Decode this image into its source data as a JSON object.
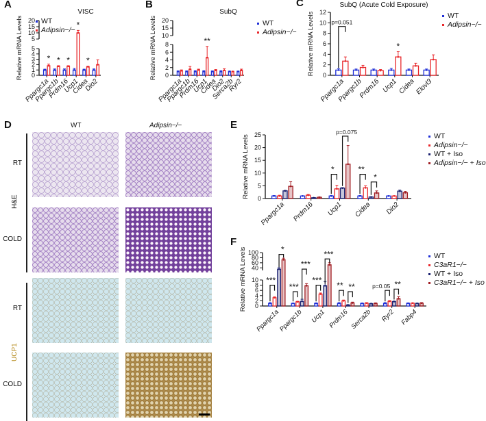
{
  "panel_labels": [
    "A",
    "B",
    "C",
    "D",
    "E",
    "F"
  ],
  "colors": {
    "wt": "#1f2fd6",
    "ko": "#e8262a",
    "wt_iso": "#1b2170",
    "ko_iso": "#a01c22"
  },
  "legends": {
    "adipsin2": [
      {
        "name": "WT",
        "italic": false
      },
      {
        "name": "Adipsin−/−",
        "italic": true
      }
    ],
    "adipsin4": [
      {
        "name": "WT",
        "italic": false
      },
      {
        "name": "Adipsin−/−",
        "italic": true
      },
      {
        "name": "WT + Iso",
        "italic": false
      },
      {
        "name": "Adipsin−/− + Iso",
        "italic": true
      }
    ],
    "c3ar4": [
      {
        "name": "WT",
        "italic": false
      },
      {
        "name": "C3aR1−/−",
        "italic": true
      },
      {
        "name": "WT + Iso",
        "italic": false
      },
      {
        "name": "C3aR1−/− + Iso",
        "italic": true
      }
    ]
  },
  "histology": {
    "columns": [
      "WT",
      "Adipsin−/−"
    ],
    "rows": [
      "RT",
      "COLD",
      "RT",
      "COLD"
    ],
    "stains": [
      "H&E",
      "UCP1"
    ]
  },
  "chart_data": [
    {
      "id": "A",
      "type": "bar",
      "title": "VISC",
      "ylabel": "Relative mRNA Levels",
      "xlabel": "",
      "categories": [
        "Ppargc1a",
        "Ppargc1b",
        "Prdm16",
        "Ucp1",
        "Cidea",
        "Dio2"
      ],
      "y_segments": [
        {
          "range": [
            0,
            5
          ],
          "ticks": [
            0,
            1,
            2,
            3,
            4,
            5
          ]
        },
        {
          "range": [
            5,
            20
          ],
          "ticks": [
            5,
            10,
            15,
            20
          ]
        }
      ],
      "series": [
        {
          "name": "WT",
          "color_key": "wt",
          "values": [
            1,
            1,
            1,
            1,
            1,
            1
          ],
          "errors": [
            0.15,
            0.2,
            0.2,
            0.3,
            0.15,
            0.2
          ]
        },
        {
          "name": "Adipsin−/−",
          "color_key": "ko",
          "values": [
            1.8,
            1.7,
            1.7,
            10,
            1.6,
            2.0
          ],
          "errors": [
            0.3,
            0.1,
            0.1,
            2.0,
            0.1,
            0.9
          ]
        }
      ],
      "marks": [
        {
          "cat": 0,
          "series": 1,
          "label": "*"
        },
        {
          "cat": 1,
          "series": 1,
          "label": "*"
        },
        {
          "cat": 2,
          "series": 1,
          "label": "*"
        },
        {
          "cat": 3,
          "series": 1,
          "label": "*"
        },
        {
          "cat": 4,
          "series": 1,
          "label": "*"
        }
      ],
      "brackets": []
    },
    {
      "id": "B",
      "type": "bar",
      "title": "SubQ",
      "ylabel": "Relative mRNA Levels",
      "xlabel": "",
      "categories": [
        "Ppargc1a",
        "Ppargc1b",
        "Prdm16",
        "Ucp1",
        "Cidea",
        "Dio2",
        "Serca2b",
        "Ryr2"
      ],
      "y_segments": [
        {
          "range": [
            0,
            8
          ],
          "ticks": [
            0,
            2,
            4,
            6,
            8
          ]
        },
        {
          "range": [
            10,
            20
          ],
          "ticks": [
            10,
            15,
            20
          ]
        }
      ],
      "series": [
        {
          "name": "WT",
          "color_key": "wt",
          "values": [
            1,
            1,
            1,
            1,
            1,
            1,
            1,
            1
          ],
          "errors": [
            0.15,
            0.15,
            0.2,
            0.2,
            0.15,
            0.2,
            0.1,
            0.1
          ]
        },
        {
          "name": "Adipsin−/−",
          "color_key": "ko",
          "values": [
            1.2,
            1.6,
            1.4,
            4.6,
            1.3,
            1.3,
            1.0,
            1.3
          ],
          "errors": [
            0.2,
            0.7,
            0.2,
            2.9,
            0.2,
            0.4,
            0.05,
            0.3
          ]
        }
      ],
      "marks": [
        {
          "cat": 3,
          "series": 1,
          "label": "**"
        }
      ],
      "brackets": []
    },
    {
      "id": "C",
      "type": "bar",
      "title": "SubQ (Acute Cold Exposure)",
      "ylabel": "Relative mRNA Levels",
      "xlabel": "",
      "categories": [
        "Ppargc1a",
        "Ppargc1b",
        "Prdm16",
        "Ucp1",
        "Cidea",
        "Elovl3"
      ],
      "y_segments": [
        {
          "range": [
            0,
            12
          ],
          "ticks": [
            0,
            2,
            4,
            6,
            8,
            10,
            12
          ]
        }
      ],
      "series": [
        {
          "name": "WT",
          "color_key": "wt",
          "values": [
            1,
            1,
            1,
            1,
            1,
            1
          ],
          "errors": [
            0.25,
            0.2,
            0.2,
            0.35,
            0.2,
            0.2
          ]
        },
        {
          "name": "Adipsin−/−",
          "color_key": "ko",
          "values": [
            2.7,
            1.5,
            0.9,
            3.5,
            1.8,
            3.0
          ],
          "errors": [
            0.8,
            0.4,
            0.2,
            1.0,
            0.5,
            0.9
          ]
        }
      ],
      "marks": [
        {
          "cat": 3,
          "series": 1,
          "label": "*"
        }
      ],
      "brackets": [
        {
          "cat": 0,
          "from": 0,
          "to": 1,
          "label": "p=0.051",
          "level": 9.3
        }
      ]
    },
    {
      "id": "E",
      "type": "bar",
      "title": "",
      "ylabel": "Relative mRNA Levels",
      "xlabel": "",
      "categories": [
        "Ppargc1a",
        "Prdm16",
        "Ucp1",
        "Cidea",
        "Dio2"
      ],
      "y_segments": [
        {
          "range": [
            0,
            25
          ],
          "ticks": [
            0,
            5,
            10,
            15,
            20,
            25
          ]
        }
      ],
      "series": [
        {
          "name": "WT",
          "color_key": "wt",
          "values": [
            1,
            1,
            1,
            1,
            1
          ],
          "errors": [
            0.2,
            0.1,
            0.2,
            0.2,
            0.1
          ]
        },
        {
          "name": "Adipsin−/−",
          "color_key": "ko",
          "values": [
            1,
            1.3,
            3.8,
            4.2,
            1.0
          ],
          "errors": [
            0.3,
            0.3,
            1.4,
            0.8,
            0.1
          ]
        },
        {
          "name": "WT + Iso",
          "color_key": "wt_iso",
          "values": [
            3,
            0.3,
            4.1,
            0.6,
            2.9
          ],
          "errors": [
            0.2,
            0.05,
            0.2,
            0.1,
            0.4
          ]
        },
        {
          "name": "Adipsin−/− + Iso",
          "color_key": "ko_iso",
          "values": [
            4.8,
            0.5,
            13.5,
            2.2,
            2.3
          ],
          "errors": [
            1.8,
            0.1,
            7.3,
            0.8,
            0.5
          ]
        }
      ],
      "marks": [],
      "brackets": [
        {
          "cat": 2,
          "from": 0,
          "to": 1,
          "label": "*",
          "level": 9.5
        },
        {
          "cat": 2,
          "from": 2,
          "to": 3,
          "label": "p=0.075",
          "level": 24.5
        },
        {
          "cat": 3,
          "from": 0,
          "to": 1,
          "label": "**",
          "level": 9.5
        },
        {
          "cat": 3,
          "from": 2,
          "to": 3,
          "label": "*",
          "level": 6.5
        }
      ]
    },
    {
      "id": "F",
      "type": "bar",
      "title": "",
      "ylabel": "Relative mRNA Levels",
      "xlabel": "",
      "categories": [
        "Ppargc1a",
        "Ppargc1b",
        "Ucp1",
        "Prdm16",
        "Serca2b",
        "Ryr2",
        "Fabp4"
      ],
      "y_segments": [
        {
          "range": [
            0,
            10
          ],
          "ticks": [
            0,
            2,
            4,
            6,
            8,
            10
          ]
        },
        {
          "range": [
            30,
            100
          ],
          "ticks": [
            40,
            60,
            80,
            100
          ]
        }
      ],
      "series": [
        {
          "name": "WT",
          "color_key": "wt",
          "values": [
            1,
            1,
            1,
            1,
            1,
            1,
            1
          ],
          "errors": [
            0.3,
            0.1,
            0.2,
            0.3,
            0.1,
            0.3,
            0.2
          ]
        },
        {
          "name": "C3aR1−/−",
          "color_key": "ko",
          "values": [
            3.2,
            1.6,
            4.6,
            2.0,
            1.1,
            1.8,
            1.1
          ],
          "errors": [
            0.3,
            0.2,
            0.4,
            0.3,
            0.2,
            0.3,
            0.1
          ]
        },
        {
          "name": "WT + Iso",
          "color_key": "wt_iso",
          "values": [
            35,
            1.8,
            7.8,
            0.4,
            0.9,
            1.7,
            1.0
          ],
          "errors": [
            6,
            0.8,
            1.6,
            0.1,
            0.1,
            0.2,
            0.1
          ]
        },
        {
          "name": "C3aR1−/− + Iso",
          "color_key": "ko_iso",
          "values": [
            72,
            7.8,
            52,
            1.2,
            1.0,
            2.8,
            1.1
          ],
          "errors": [
            6,
            0.8,
            8,
            0.3,
            0.2,
            0.8,
            0.2
          ]
        }
      ],
      "marks": [],
      "brackets": [
        {
          "cat": 0,
          "from": 0,
          "to": 1,
          "label": "***",
          "level": 8
        },
        {
          "cat": 0,
          "from": 2,
          "to": 3,
          "label": "*",
          "level": 93
        },
        {
          "cat": 1,
          "from": 0,
          "to": 1,
          "label": "***",
          "level": 5.5
        },
        {
          "cat": 1,
          "from": 2,
          "to": 3,
          "label": "***",
          "level": 35
        },
        {
          "cat": 2,
          "from": 0,
          "to": 1,
          "label": "***",
          "level": 8
        },
        {
          "cat": 2,
          "from": 2,
          "to": 3,
          "label": "***",
          "level": 75
        },
        {
          "cat": 3,
          "from": 0,
          "to": 1,
          "label": "**",
          "level": 6
        },
        {
          "cat": 3,
          "from": 2,
          "to": 3,
          "label": "**",
          "level": 5.5
        },
        {
          "cat": 5,
          "from": 0,
          "to": 1,
          "label": "p=0.05",
          "level": 6
        },
        {
          "cat": 5,
          "from": 2,
          "to": 3,
          "label": "**",
          "level": 6.5
        }
      ]
    }
  ]
}
